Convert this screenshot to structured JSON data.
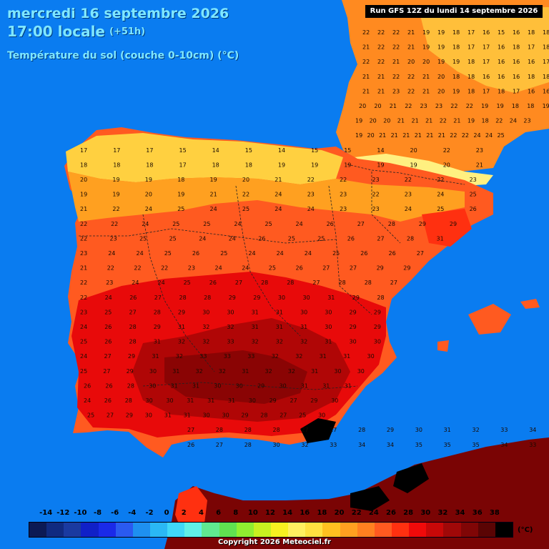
{
  "header": {
    "date_line": "mercredi 16 septembre 2026",
    "time_line": "17:00 locale",
    "lead_time": "(+51h)",
    "variable": "Température du sol (couche 0-10cm) (°C)"
  },
  "run_label": "Run GFS 12Z du lundi 14 septembre 2026",
  "legend": {
    "unit": "(°C)",
    "ticks": [
      "-14",
      "-12",
      "-10",
      "-8",
      "-6",
      "-4",
      "-2",
      "0",
      "2",
      "4",
      "6",
      "8",
      "10",
      "12",
      "14",
      "16",
      "18",
      "20",
      "22",
      "24",
      "26",
      "28",
      "30",
      "32",
      "34",
      "36",
      "38"
    ],
    "colors": [
      "#0c1a55",
      "#102a80",
      "#1a3aa0",
      "#1020c8",
      "#1a2ae8",
      "#2a5af0",
      "#1e90f0",
      "#2ab8f5",
      "#40d8f8",
      "#60f0e8",
      "#60e890",
      "#60e050",
      "#90ee30",
      "#c8f020",
      "#f8f020",
      "#ffef60",
      "#ffe040",
      "#ffc020",
      "#ffa020",
      "#ff8020",
      "#ff5a20",
      "#ff3010",
      "#f00a0a",
      "#c80808",
      "#a00808",
      "#800606",
      "#5a0404",
      "#000000"
    ]
  },
  "map": {
    "sea_color": "#0a7cf0",
    "value_rows": [
      [
        "22",
        "22",
        "22",
        "21",
        "19",
        "19",
        "18",
        "17",
        "16",
        "15",
        "16",
        "18",
        "18"
      ],
      [
        "21",
        "22",
        "22",
        "21",
        "19",
        "19",
        "18",
        "17",
        "17",
        "16",
        "18",
        "17",
        "18"
      ],
      [
        "22",
        "22",
        "21",
        "20",
        "20",
        "19",
        "19",
        "18",
        "17",
        "16",
        "16",
        "16",
        "17"
      ],
      [
        "21",
        "21",
        "22",
        "22",
        "21",
        "20",
        "18",
        "18",
        "16",
        "16",
        "16",
        "18",
        "18"
      ],
      [
        "21",
        "21",
        "23",
        "22",
        "21",
        "20",
        "19",
        "18",
        "17",
        "18",
        "17",
        "16",
        "16"
      ],
      [
        "20",
        "20",
        "21",
        "22",
        "23",
        "23",
        "22",
        "22",
        "19",
        "19",
        "18",
        "18",
        "19"
      ],
      [
        "19",
        "20",
        "20",
        "21",
        "21",
        "21",
        "22",
        "21",
        "19",
        "18",
        "22",
        "24",
        "23"
      ],
      [
        "19",
        "20",
        "21",
        "21",
        "21",
        "21",
        "21",
        "21",
        "22",
        "22",
        "24",
        "24",
        "25"
      ],
      [
        "17",
        "17",
        "17",
        "15",
        "14",
        "15",
        "14",
        "15",
        "15",
        "14",
        "20",
        "22",
        "23"
      ],
      [
        "18",
        "18",
        "18",
        "17",
        "18",
        "18",
        "19",
        "19",
        "19",
        "19",
        "19",
        "20",
        "21"
      ],
      [
        "20",
        "19",
        "19",
        "18",
        "19",
        "20",
        "21",
        "22",
        "22",
        "23",
        "22",
        "22",
        "23"
      ],
      [
        "19",
        "19",
        "20",
        "19",
        "21",
        "22",
        "24",
        "23",
        "23",
        "22",
        "23",
        "24",
        "25"
      ],
      [
        "21",
        "22",
        "24",
        "25",
        "24",
        "25",
        "24",
        "24",
        "23",
        "23",
        "24",
        "25",
        "26"
      ],
      [
        "22",
        "22",
        "24",
        "25",
        "25",
        "24",
        "25",
        "24",
        "26",
        "27",
        "28",
        "29",
        "29"
      ],
      [
        "22",
        "23",
        "25",
        "25",
        "24",
        "24",
        "26",
        "25",
        "25",
        "26",
        "27",
        "28",
        "31"
      ],
      [
        "23",
        "24",
        "24",
        "25",
        "26",
        "25",
        "24",
        "24",
        "24",
        "25",
        "26",
        "26",
        "27"
      ],
      [
        "21",
        "22",
        "22",
        "22",
        "23",
        "24",
        "24",
        "25",
        "26",
        "27",
        "27",
        "29",
        "29"
      ],
      [
        "22",
        "23",
        "24",
        "24",
        "25",
        "26",
        "27",
        "28",
        "28",
        "27",
        "28",
        "28",
        "27"
      ],
      [
        "22",
        "24",
        "26",
        "27",
        "28",
        "28",
        "29",
        "29",
        "30",
        "30",
        "31",
        "29",
        "28"
      ],
      [
        "23",
        "25",
        "27",
        "28",
        "29",
        "30",
        "30",
        "31",
        "31",
        "30",
        "30",
        "29",
        "29"
      ],
      [
        "24",
        "26",
        "28",
        "29",
        "31",
        "32",
        "32",
        "31",
        "31",
        "31",
        "30",
        "29",
        "29"
      ],
      [
        "25",
        "26",
        "28",
        "31",
        "32",
        "32",
        "33",
        "32",
        "32",
        "32",
        "31",
        "30",
        "30"
      ],
      [
        "24",
        "27",
        "29",
        "31",
        "32",
        "33",
        "33",
        "33",
        "32",
        "32",
        "31",
        "31",
        "30"
      ],
      [
        "25",
        "27",
        "29",
        "30",
        "31",
        "32",
        "32",
        "31",
        "32",
        "32",
        "31",
        "30",
        "30"
      ],
      [
        "26",
        "26",
        "28",
        "30",
        "31",
        "31",
        "30",
        "30",
        "29",
        "30",
        "31",
        "31",
        "31"
      ],
      [
        "24",
        "26",
        "28",
        "30",
        "30",
        "31",
        "31",
        "31",
        "30",
        "29",
        "27",
        "29",
        "30"
      ],
      [
        "25",
        "27",
        "29",
        "30",
        "31",
        "31",
        "30",
        "30",
        "29",
        "28",
        "27",
        "25",
        "30"
      ],
      [
        "27",
        "28",
        "28",
        "28",
        "27",
        "27",
        "28",
        "29",
        "30",
        "31",
        "32",
        "33",
        "34"
      ],
      [
        "26",
        "27",
        "28",
        "30",
        "32",
        "33",
        "34",
        "34",
        "35",
        "35",
        "35",
        "34",
        "33"
      ]
    ]
  },
  "copyright": "Copyright 2026 Meteociel.fr"
}
